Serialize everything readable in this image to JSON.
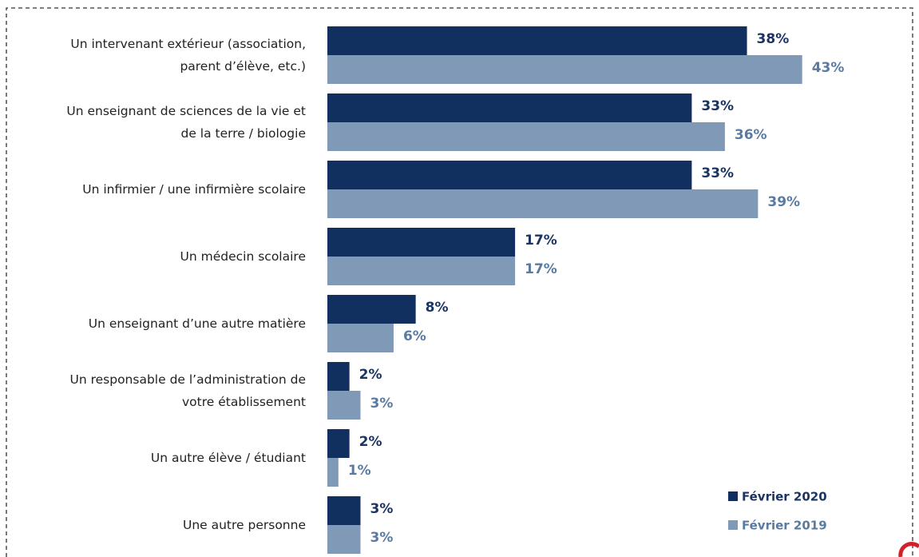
{
  "chart_data": {
    "type": "barh",
    "categories": [
      "Un intervenant extérieur (association,\nparent d’élève, etc.)",
      "Un enseignant de sciences de la vie et\nde la terre / biologie",
      "Un infirmier / une infirmière scolaire",
      "Un médecin scolaire",
      "Un enseignant d’une autre matière",
      "Un responsable de l’administration de\nvotre établissement",
      "Un autre élève / étudiant",
      "Une autre personne"
    ],
    "series": [
      {
        "name": "Février 2020",
        "color": "#112f5f",
        "label_color": "#1b3463",
        "values": [
          38,
          33,
          33,
          17,
          8,
          2,
          2,
          3
        ],
        "value_labels": [
          "38%",
          "33%",
          "33%",
          "17%",
          "8%",
          "2%",
          "2%",
          "3%"
        ]
      },
      {
        "name": "Février 2019",
        "color": "#8099b6",
        "label_color": "#5a7ba1",
        "values": [
          43,
          36,
          39,
          17,
          6,
          3,
          1,
          3
        ],
        "value_labels": [
          "43%",
          "36%",
          "39%",
          "17%",
          "6%",
          "3%",
          "1%",
          "3%"
        ]
      }
    ],
    "legend": "bottom-right"
  }
}
